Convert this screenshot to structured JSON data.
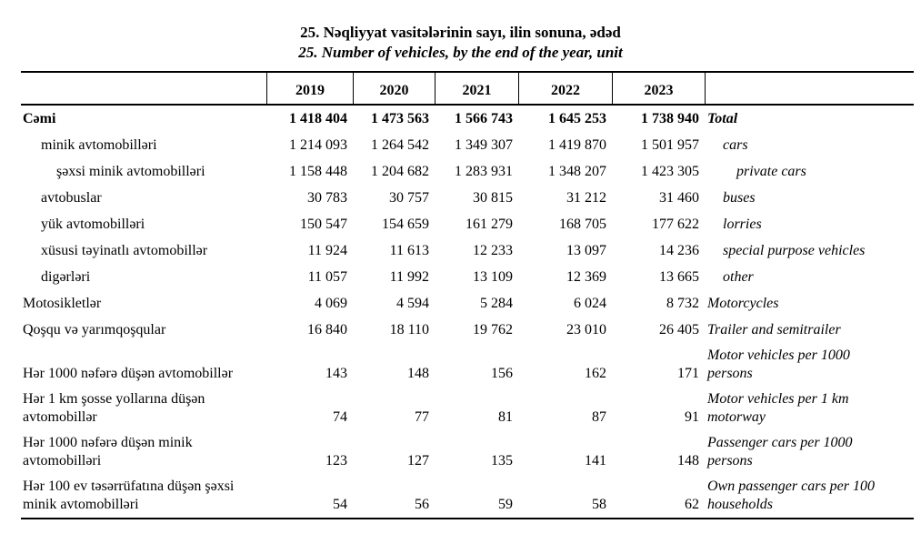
{
  "title": {
    "az": "25. Nəqliyyat vasitələrinin sayı, ilin sonuna, ədəd",
    "en": "25. Number of vehicles, by the end of the year, unit"
  },
  "colors": {
    "text": "#000000",
    "background": "#ffffff",
    "border": "#000000"
  },
  "table": {
    "year_columns": [
      "2019",
      "2020",
      "2021",
      "2022",
      "2023"
    ],
    "rows": [
      {
        "az": "Cəmi",
        "en": "Total",
        "values": [
          "1 418 404",
          "1 473 563",
          "1 566 743",
          "1 645 253",
          "1 738 940"
        ],
        "bold": true,
        "az_indent": 0,
        "en_indent": 0,
        "tall": false
      },
      {
        "az": "minik avtomobilləri",
        "en": "cars",
        "values": [
          "1 214 093",
          "1 264 542",
          "1 349 307",
          "1 419 870",
          "1 501 957"
        ],
        "bold": false,
        "az_indent": 1,
        "en_indent": 1,
        "tall": false
      },
      {
        "az": "şəxsi minik avtomobilləri",
        "en": "private cars",
        "values": [
          "1 158 448",
          "1 204 682",
          "1 283 931",
          "1 348 207",
          "1 423 305"
        ],
        "bold": false,
        "az_indent": 2,
        "en_indent": 2,
        "tall": false
      },
      {
        "az": "avtobuslar",
        "en": "buses",
        "values": [
          "30 783",
          "30 757",
          "30 815",
          "31 212",
          "31 460"
        ],
        "bold": false,
        "az_indent": 1,
        "en_indent": 1,
        "tall": false
      },
      {
        "az": "yük avtomobilləri",
        "en": "lorries",
        "values": [
          "150 547",
          "154 659",
          "161 279",
          "168 705",
          "177 622"
        ],
        "bold": false,
        "az_indent": 1,
        "en_indent": 1,
        "tall": false
      },
      {
        "az": "xüsusi təyinatlı avtomobillər",
        "en": "special purpose vehicles",
        "values": [
          "11 924",
          "11 613",
          "12 233",
          "13 097",
          "14 236"
        ],
        "bold": false,
        "az_indent": 1,
        "en_indent": 1,
        "tall": false
      },
      {
        "az": "digərləri",
        "en": "other",
        "values": [
          "11 057",
          "11 992",
          "13 109",
          "12 369",
          "13 665"
        ],
        "bold": false,
        "az_indent": 1,
        "en_indent": 1,
        "tall": false
      },
      {
        "az": "Motosikletlər",
        "en": "Motorcycles",
        "values": [
          "4 069",
          "4 594",
          "5 284",
          "6 024",
          "8 732"
        ],
        "bold": false,
        "az_indent": 0,
        "en_indent": 0,
        "tall": false
      },
      {
        "az": "Qoşqu və yarımqoşqular",
        "en": "Trailer and semitrailer",
        "values": [
          "16 840",
          "18 110",
          "19 762",
          "23 010",
          "26 405"
        ],
        "bold": false,
        "az_indent": 0,
        "en_indent": 0,
        "tall": false
      },
      {
        "az": "Hər 1000 nəfərə düşən avtomobillər",
        "en": "Motor vehicles per 1000\npersons",
        "values": [
          "143",
          "148",
          "156",
          "162",
          "171"
        ],
        "bold": false,
        "az_indent": 0,
        "en_indent": 0,
        "tall": true
      },
      {
        "az": "Hər 1 km şosse yollarına düşən\navtomobillər",
        "en": "Motor vehicles per 1 km\nmotorway",
        "values": [
          "74",
          "77",
          "81",
          "87",
          "91"
        ],
        "bold": false,
        "az_indent": 0,
        "en_indent": 0,
        "tall": true
      },
      {
        "az": "Hər 1000 nəfərə düşən minik\navtomobilləri",
        "en": "Passenger cars per 1000\npersons",
        "values": [
          "123",
          "127",
          "135",
          "141",
          "148"
        ],
        "bold": false,
        "az_indent": 0,
        "en_indent": 0,
        "tall": true
      },
      {
        "az": "Hər 100 ev təsərrüfatına düşən şəxsi\nminik avtomobilləri",
        "en": "Own passenger cars per 100\nhouseholds",
        "values": [
          "54",
          "56",
          "59",
          "58",
          "62"
        ],
        "bold": false,
        "az_indent": 0,
        "en_indent": 0,
        "tall": true
      }
    ]
  }
}
